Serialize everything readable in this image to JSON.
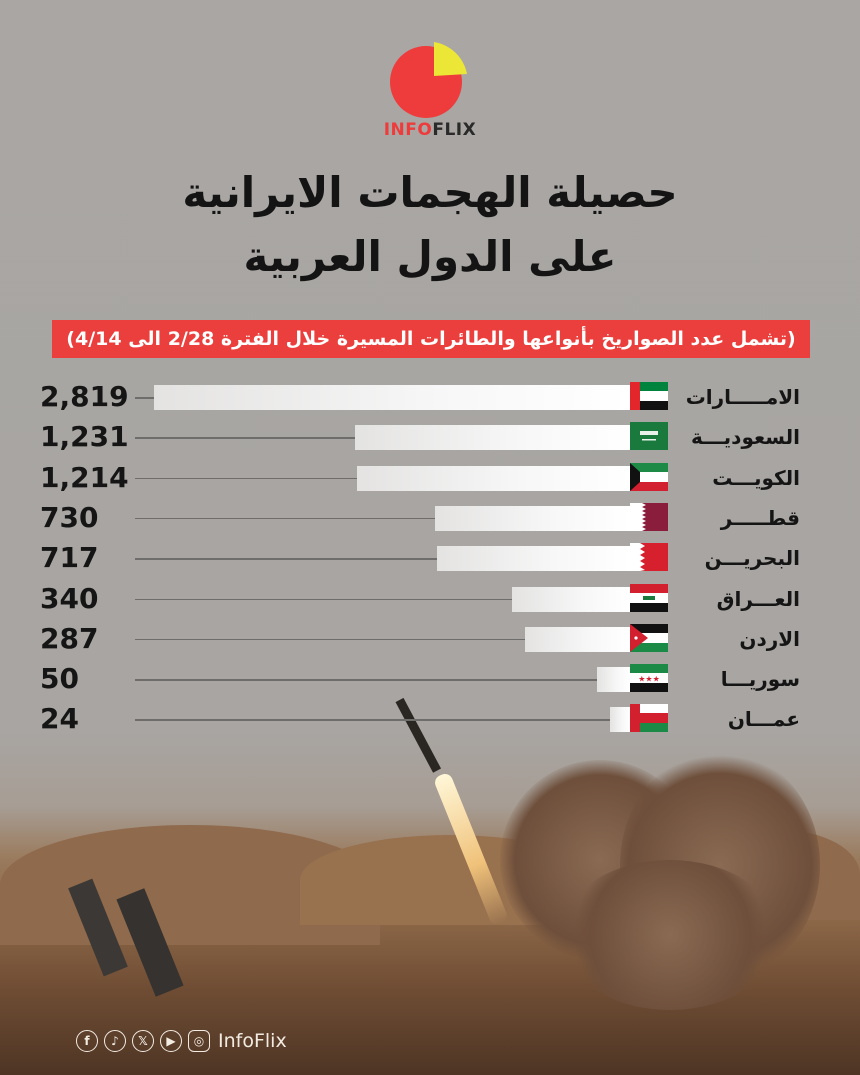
{
  "brand": {
    "part1": "INFO",
    "part2": "FLIX",
    "logo_colors": {
      "main": "#ee3b3b",
      "slice": "#ece636"
    }
  },
  "title": {
    "line1": "حصيلة الهجمات الايرانية",
    "line2": "على الدول العربية"
  },
  "subtitle": "(تشمل عدد الصواريخ بأنواعها والطائرات المسيرة خلال الفترة 2/28 الى 4/14)",
  "chart_data": {
    "type": "bar",
    "orientation": "horizontal",
    "title": "",
    "xlabel": "",
    "ylabel": "",
    "grid": false,
    "categories": [
      "الامـــــارات",
      "السعوديـــة",
      "الكويـــت",
      "قطـــــر",
      "البحريـــن",
      "العـــراق",
      "الاردن",
      "سوريـــا",
      "عمـــان"
    ],
    "flags": [
      "uae",
      "saudi",
      "kuwait",
      "qatar",
      "bahrain",
      "iraq",
      "jordan",
      "syria",
      "oman"
    ],
    "labels": [
      "2,819",
      "1,231",
      "1,214",
      "730",
      "717",
      "340",
      "287",
      "50",
      "24"
    ],
    "values": [
      2819,
      1231,
      1214,
      730,
      717,
      340,
      287,
      50,
      24
    ]
  },
  "footer": {
    "handle": "InfoFlix",
    "icons": [
      "facebook-icon",
      "tiktok-icon",
      "x-icon",
      "youtube-icon",
      "instagram-icon"
    ]
  }
}
